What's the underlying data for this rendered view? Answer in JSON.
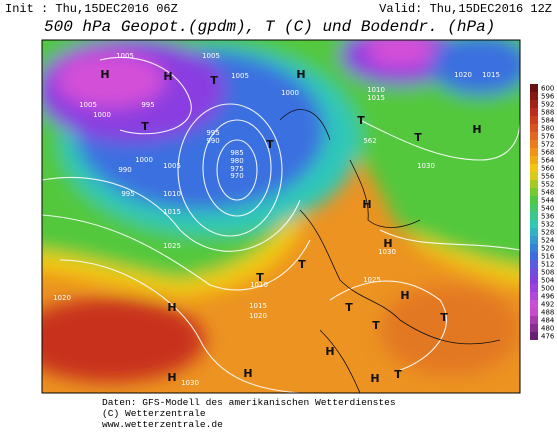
{
  "header": {
    "init": "Init : Thu,15DEC2016 06Z",
    "valid": "Valid: Thu,15DEC2016 12Z",
    "title": "500 hPa Geopot.(gpdm), T (C) und Bodendr. (hPa)"
  },
  "colorbar": {
    "ticks": [
      600,
      596,
      592,
      588,
      584,
      580,
      576,
      572,
      568,
      564,
      560,
      556,
      552,
      548,
      544,
      540,
      536,
      532,
      528,
      524,
      520,
      516,
      512,
      508,
      504,
      500,
      496,
      492,
      488,
      484,
      480,
      476
    ]
  },
  "map": {
    "labels": [
      "1005",
      "1005",
      "1005",
      "995",
      "1000",
      "1005",
      "1000",
      "995",
      "990",
      "985",
      "980",
      "975",
      "970",
      "1000",
      "1005",
      "1010",
      "1015",
      "995",
      "990",
      "1025",
      "1020",
      "1030",
      "1025",
      "1030",
      "1020",
      "1015",
      "1015",
      "1010",
      "1030",
      "1015",
      "1020",
      "1010",
      "562",
      "H",
      "H",
      "T",
      "T",
      "T",
      "T",
      "H",
      "T",
      "H",
      "H",
      "H",
      "H",
      "H",
      "H",
      "H",
      "T",
      "T",
      "T",
      "H",
      "T",
      "H",
      "T",
      "T"
    ]
  },
  "footer": {
    "lines": [
      "Daten: GFS-Modell des amerikanischen Wetterdienstes",
      "(C) Wetterzentrale",
      "www.wetterzentrale.de"
    ]
  }
}
